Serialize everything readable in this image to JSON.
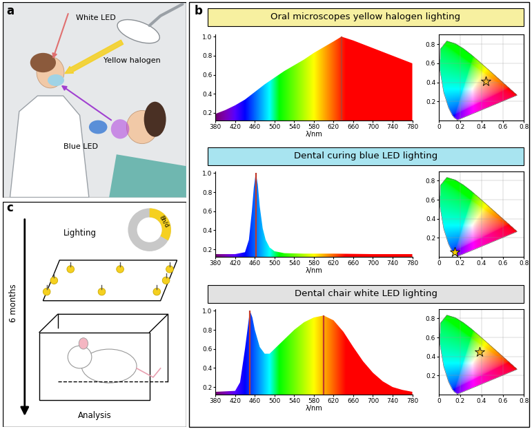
{
  "panel_labels": [
    "a",
    "b",
    "c"
  ],
  "panel_a": {
    "labels": [
      "White LED",
      "Yellow halogen",
      "Blue LED"
    ]
  },
  "panel_c": {
    "top": "Lighting",
    "schedule": "8h/d",
    "time_axis": "6 months",
    "bottom": "Analysis"
  },
  "chart_data": [
    {
      "type": "area",
      "title": "Oral microscopes yellow halogen lighting",
      "x_label": "λ/nm",
      "x": [
        380,
        400,
        420,
        440,
        460,
        480,
        500,
        520,
        540,
        560,
        580,
        600,
        620,
        636,
        660,
        680,
        700,
        720,
        740,
        760,
        780
      ],
      "values": [
        0.19,
        0.23,
        0.28,
        0.34,
        0.42,
        0.5,
        0.57,
        0.64,
        0.7,
        0.76,
        0.83,
        0.89,
        0.95,
        1.0,
        0.96,
        0.92,
        0.88,
        0.84,
        0.8,
        0.76,
        0.72
      ],
      "peaks": [
        636
      ],
      "xlim": [
        380,
        780
      ],
      "xticks": [
        380,
        420,
        460,
        500,
        540,
        580,
        620,
        660,
        700,
        740,
        780
      ],
      "ylim": [
        0.12,
        1.02
      ],
      "yticks": [
        0.2,
        0.4,
        0.6,
        0.8,
        {
          "value": 1,
          "label": "1.0"
        }
      ]
    },
    {
      "type": "scatter",
      "x": [
        0.44
      ],
      "values": [
        0.41
      ],
      "marker": "star",
      "color": "#f2b134",
      "xlim": [
        0,
        0.8
      ],
      "xticks": [
        0,
        0.2,
        0.4,
        0.6,
        0.8
      ],
      "ylim": [
        0,
        0.9
      ],
      "yticks": [
        0.2,
        0.4,
        0.6,
        0.8
      ],
      "grid": true
    },
    {
      "type": "area",
      "title": "Dental curing blue LED lighting",
      "x_label": "λ/nm",
      "x": [
        380,
        420,
        440,
        448,
        454,
        458,
        462,
        466,
        470,
        476,
        482,
        490,
        500,
        520,
        560,
        620,
        700,
        780
      ],
      "values": [
        0.15,
        0.15,
        0.17,
        0.3,
        0.6,
        0.85,
        1.0,
        0.88,
        0.65,
        0.42,
        0.3,
        0.22,
        0.18,
        0.16,
        0.155,
        0.155,
        0.15,
        0.15
      ],
      "peaks": [
        462
      ],
      "xlim": [
        380,
        780
      ],
      "xticks": [
        380,
        420,
        460,
        500,
        540,
        580,
        620,
        660,
        700,
        740,
        780
      ],
      "ylim": [
        0.12,
        1.02
      ],
      "yticks": [
        0.2,
        0.4,
        0.6,
        0.8,
        {
          "value": 1,
          "label": "1.0"
        }
      ]
    },
    {
      "type": "scatter",
      "x": [
        0.15
      ],
      "values": [
        0.05
      ],
      "marker": "star",
      "color": "#f5d000",
      "xlim": [
        0,
        0.8
      ],
      "xticks": [
        0,
        0.2,
        0.4,
        0.6,
        0.8
      ],
      "ylim": [
        0,
        0.9
      ],
      "yticks": [
        0.2,
        0.4,
        0.6,
        0.8
      ],
      "grid": true
    },
    {
      "type": "area",
      "title": "Dental chair white LED lighting",
      "x_label": "λ/nm",
      "x": [
        380,
        420,
        430,
        440,
        450,
        455,
        460,
        470,
        480,
        490,
        500,
        520,
        540,
        560,
        580,
        600,
        620,
        640,
        660,
        680,
        700,
        720,
        740,
        760,
        780
      ],
      "values": [
        0.15,
        0.16,
        0.25,
        0.6,
        1.0,
        0.93,
        0.8,
        0.62,
        0.55,
        0.55,
        0.6,
        0.7,
        0.8,
        0.88,
        0.93,
        0.95,
        0.9,
        0.78,
        0.62,
        0.47,
        0.35,
        0.26,
        0.2,
        0.17,
        0.15
      ],
      "peaks": [
        450,
        600
      ],
      "xlim": [
        380,
        780
      ],
      "xticks": [
        380,
        420,
        460,
        500,
        540,
        580,
        620,
        660,
        700,
        740,
        780
      ],
      "ylim": [
        0.12,
        1.02
      ],
      "yticks": [
        0.2,
        0.4,
        0.6,
        0.8,
        {
          "value": 1,
          "label": "1.0"
        }
      ]
    },
    {
      "type": "scatter",
      "x": [
        0.38
      ],
      "values": [
        0.45
      ],
      "marker": "star",
      "color": "#f0c020",
      "xlim": [
        0,
        0.8
      ],
      "xticks": [
        0,
        0.2,
        0.4,
        0.6,
        0.8
      ],
      "ylim": [
        0,
        0.9
      ],
      "yticks": [
        0.2,
        0.4,
        0.6,
        0.8
      ],
      "grid": true
    }
  ]
}
